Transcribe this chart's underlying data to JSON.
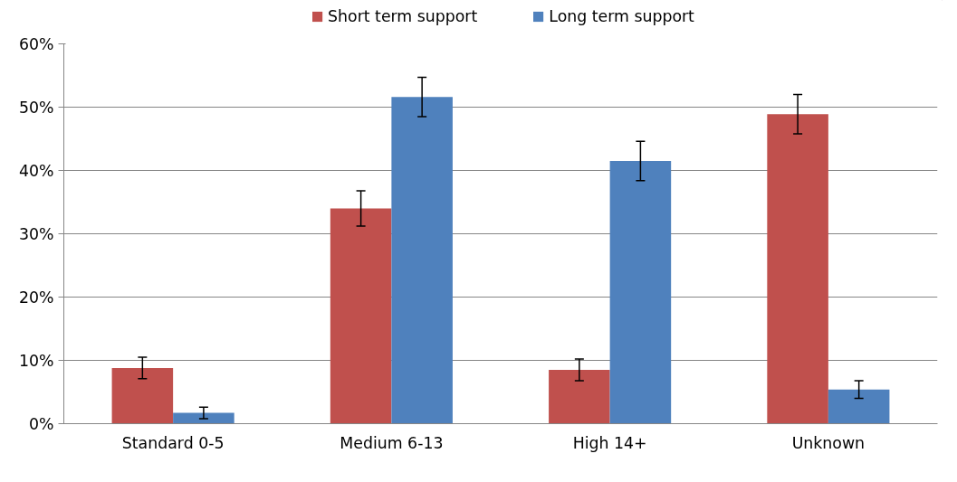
{
  "chart_data": {
    "type": "bar",
    "categories": [
      "Standard 0-5",
      "Medium 6-13",
      "High 14+",
      "Unknown"
    ],
    "series": [
      {
        "name": "Short term support",
        "color": "#c0504d",
        "values": [
          8.8,
          34.0,
          8.5,
          48.9
        ],
        "errors": [
          1.7,
          2.8,
          1.7,
          3.1
        ]
      },
      {
        "name": "Long term support",
        "color": "#4f81bd",
        "values": [
          1.7,
          51.6,
          41.5,
          5.4
        ],
        "errors": [
          0.9,
          3.1,
          3.1,
          1.4
        ]
      }
    ],
    "ylim": [
      0,
      60
    ],
    "yticks": [
      {
        "value": 0,
        "label": "0%"
      },
      {
        "value": 10,
        "label": "10%"
      },
      {
        "value": 20,
        "label": "20%"
      },
      {
        "value": 30,
        "label": "30%"
      },
      {
        "value": 40,
        "label": "40%"
      },
      {
        "value": 50,
        "label": "50%"
      },
      {
        "value": 60,
        "label": "60%"
      }
    ],
    "grid": "y",
    "legend": "top"
  }
}
